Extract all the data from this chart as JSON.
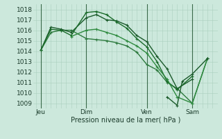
{
  "bg_color": "#cce8dc",
  "grid_color": "#aacfbe",
  "xlabel": "Pression niveau de la mer( hPa )",
  "ylim": [
    1008.5,
    1018.5
  ],
  "yticks": [
    1009,
    1010,
    1011,
    1012,
    1013,
    1014,
    1015,
    1016,
    1017,
    1018
  ],
  "xtick_labels": [
    "Jeu",
    "Dim",
    "Ven",
    "Sam"
  ],
  "xtick_positions": [
    0,
    9,
    21,
    30
  ],
  "xlim": [
    -1.5,
    35
  ],
  "series": [
    {
      "x": [
        0,
        2,
        4,
        6,
        9,
        11,
        13,
        15,
        17,
        19,
        21,
        23,
        25,
        27,
        30,
        33
      ],
      "y": [
        1014.1,
        1015.8,
        1016.0,
        1016.0,
        1015.2,
        1015.1,
        1015.0,
        1014.8,
        1014.5,
        1013.9,
        1012.7,
        1012.2,
        1011.0,
        1010.4,
        1009.0,
        1013.3
      ],
      "color": "#2d7a3e",
      "lw": 1.0
    },
    {
      "x": [
        0,
        2,
        4,
        6,
        9,
        11,
        13,
        15,
        17,
        19,
        21,
        23,
        25,
        27,
        30
      ],
      "y": [
        1014.1,
        1016.3,
        1016.1,
        1015.8,
        1017.2,
        1017.5,
        1017.0,
        1016.9,
        1016.5,
        1015.5,
        1014.9,
        1013.5,
        1012.3,
        1010.4,
        1011.3
      ],
      "color": "#1a5a2a",
      "lw": 1.0
    },
    {
      "x": [
        0,
        2,
        4,
        6,
        9,
        11,
        13,
        15,
        17,
        19,
        21,
        23,
        25,
        27,
        30
      ],
      "y": [
        1014.1,
        1016.1,
        1016.0,
        1015.5,
        1017.7,
        1017.8,
        1017.5,
        1016.8,
        1016.2,
        1015.2,
        1014.4,
        1013.0,
        1011.1,
        1010.3,
        1011.6
      ],
      "color": "#1a6b2a",
      "lw": 1.0
    },
    {
      "x": [
        6,
        9,
        11,
        13,
        15,
        17,
        19,
        21,
        23,
        25,
        27,
        30,
        33
      ],
      "y": [
        1015.4,
        1016.0,
        1016.1,
        1015.8,
        1015.5,
        1015.0,
        1014.5,
        1013.8,
        1012.5,
        1011.3,
        1009.6,
        1009.0,
        1013.3
      ],
      "color": "#2d8a3e",
      "lw": 1.0
    },
    {
      "x": [
        25,
        27,
        28,
        30,
        33
      ],
      "y": [
        1009.6,
        1008.8,
        1011.1,
        1011.8,
        1013.3
      ],
      "color": "#1a5a2a",
      "lw": 1.0
    }
  ]
}
